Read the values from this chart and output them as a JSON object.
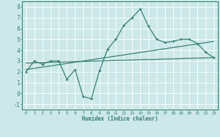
{
  "xlabel": "Humidex (Indice chaleur)",
  "xlim": [
    -0.5,
    23.5
  ],
  "ylim": [
    -1.5,
    8.5
  ],
  "yticks": [
    -1,
    0,
    1,
    2,
    3,
    4,
    5,
    6,
    7,
    8
  ],
  "xticks": [
    0,
    1,
    2,
    3,
    4,
    5,
    6,
    7,
    8,
    9,
    10,
    11,
    12,
    13,
    14,
    15,
    16,
    17,
    18,
    19,
    20,
    21,
    22,
    23
  ],
  "bg_color": "#cce8e8",
  "grid_color": "#b0d8d8",
  "line_color": "#2e7d6e",
  "main_x": [
    0,
    1,
    2,
    3,
    4,
    5,
    6,
    7,
    8,
    9,
    10,
    11,
    12,
    13,
    14,
    15,
    16,
    17,
    18,
    19,
    20,
    21,
    22,
    23
  ],
  "main_y": [
    2.0,
    3.0,
    2.7,
    3.0,
    3.0,
    1.3,
    2.2,
    -0.3,
    -0.5,
    2.1,
    4.1,
    5.0,
    6.3,
    7.0,
    7.8,
    6.2,
    5.0,
    4.7,
    4.8,
    5.0,
    5.0,
    4.6,
    3.8,
    3.3
  ],
  "line1_x": [
    0,
    23
  ],
  "line1_y": [
    2.2,
    4.8
  ],
  "line2_x": [
    0,
    23
  ],
  "line2_y": [
    2.8,
    3.3
  ],
  "font_family": "monospace"
}
